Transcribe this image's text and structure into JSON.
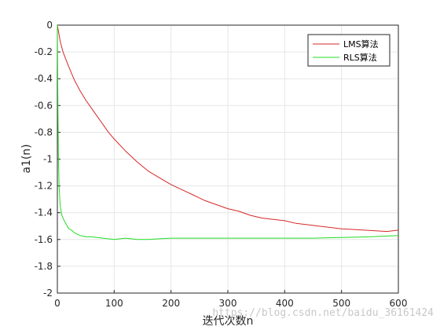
{
  "chart_data": {
    "type": "line",
    "xlabel": "迭代次数n",
    "ylabel": "a1(n)",
    "xlim": [
      0,
      600
    ],
    "ylim": [
      -2,
      0
    ],
    "grid": true,
    "legend_position": "top-right",
    "x_ticks": [
      "0",
      "100",
      "200",
      "300",
      "400",
      "500",
      "600"
    ],
    "y_ticks": [
      "0",
      "-0.2",
      "-0.4",
      "-0.6",
      "-0.8",
      "-1",
      "-1.2",
      "-1.4",
      "-1.6",
      "-1.8",
      "-2"
    ],
    "series": [
      {
        "name": "LMS算法",
        "color": "#d62728",
        "points": [
          [
            0,
            0
          ],
          [
            5,
            -0.12
          ],
          [
            10,
            -0.2
          ],
          [
            20,
            -0.31
          ],
          [
            30,
            -0.41
          ],
          [
            40,
            -0.49
          ],
          [
            50,
            -0.56
          ],
          [
            60,
            -0.62
          ],
          [
            70,
            -0.68
          ],
          [
            80,
            -0.74
          ],
          [
            90,
            -0.8
          ],
          [
            100,
            -0.85
          ],
          [
            120,
            -0.94
          ],
          [
            140,
            -1.02
          ],
          [
            160,
            -1.09
          ],
          [
            180,
            -1.14
          ],
          [
            200,
            -1.19
          ],
          [
            220,
            -1.23
          ],
          [
            240,
            -1.27
          ],
          [
            260,
            -1.31
          ],
          [
            280,
            -1.34
          ],
          [
            300,
            -1.37
          ],
          [
            320,
            -1.39
          ],
          [
            340,
            -1.42
          ],
          [
            360,
            -1.44
          ],
          [
            380,
            -1.45
          ],
          [
            400,
            -1.46
          ],
          [
            420,
            -1.48
          ],
          [
            440,
            -1.49
          ],
          [
            460,
            -1.5
          ],
          [
            480,
            -1.51
          ],
          [
            500,
            -1.52
          ],
          [
            520,
            -1.525
          ],
          [
            540,
            -1.53
          ],
          [
            560,
            -1.535
          ],
          [
            580,
            -1.54
          ],
          [
            600,
            -1.53
          ]
        ]
      },
      {
        "name": "RLS算法",
        "color": "#22dd22",
        "points": [
          [
            0,
            0
          ],
          [
            1,
            -0.6
          ],
          [
            2,
            -1.0
          ],
          [
            3,
            -1.2
          ],
          [
            5,
            -1.35
          ],
          [
            8,
            -1.42
          ],
          [
            12,
            -1.46
          ],
          [
            16,
            -1.49
          ],
          [
            20,
            -1.52
          ],
          [
            25,
            -1.53
          ],
          [
            30,
            -1.55
          ],
          [
            40,
            -1.57
          ],
          [
            50,
            -1.58
          ],
          [
            60,
            -1.58
          ],
          [
            80,
            -1.59
          ],
          [
            100,
            -1.6
          ],
          [
            120,
            -1.59
          ],
          [
            140,
            -1.6
          ],
          [
            160,
            -1.6
          ],
          [
            180,
            -1.595
          ],
          [
            200,
            -1.59
          ],
          [
            250,
            -1.59
          ],
          [
            300,
            -1.59
          ],
          [
            350,
            -1.59
          ],
          [
            400,
            -1.59
          ],
          [
            450,
            -1.59
          ],
          [
            500,
            -1.585
          ],
          [
            550,
            -1.58
          ],
          [
            600,
            -1.57
          ]
        ]
      }
    ]
  },
  "watermark": "https://blog.csdn.net/baidu_36161424"
}
